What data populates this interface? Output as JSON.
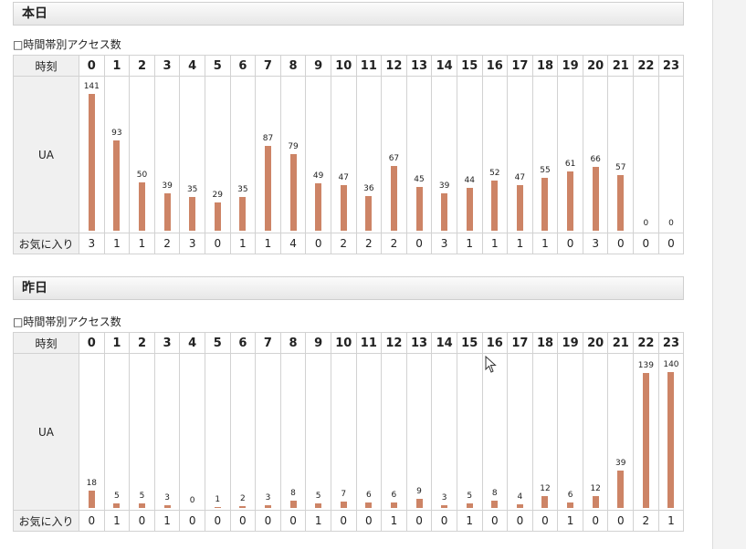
{
  "sections": [
    {
      "header": "本日",
      "subtitle": "□時間帯別アクセス数",
      "row_labels": {
        "hour": "時刻",
        "ua": "UA",
        "favorites": "お気に入り"
      },
      "hours": [
        "0",
        "1",
        "2",
        "3",
        "4",
        "5",
        "6",
        "7",
        "8",
        "9",
        "10",
        "11",
        "12",
        "13",
        "14",
        "15",
        "16",
        "17",
        "18",
        "19",
        "20",
        "21",
        "22",
        "23"
      ],
      "ua": [
        141,
        93,
        50,
        39,
        35,
        29,
        35,
        87,
        79,
        49,
        47,
        36,
        67,
        45,
        39,
        44,
        52,
        47,
        55,
        61,
        66,
        57,
        0,
        0
      ],
      "favorites": [
        3,
        1,
        1,
        2,
        3,
        0,
        1,
        1,
        4,
        0,
        2,
        2,
        2,
        0,
        3,
        1,
        1,
        1,
        1,
        0,
        3,
        0,
        0,
        0
      ]
    },
    {
      "header": "昨日",
      "subtitle": "□時間帯別アクセス数",
      "row_labels": {
        "hour": "時刻",
        "ua": "UA",
        "favorites": "お気に入り"
      },
      "hours": [
        "0",
        "1",
        "2",
        "3",
        "4",
        "5",
        "6",
        "7",
        "8",
        "9",
        "10",
        "11",
        "12",
        "13",
        "14",
        "15",
        "16",
        "17",
        "18",
        "19",
        "20",
        "21",
        "22",
        "23"
      ],
      "ua": [
        18,
        5,
        5,
        3,
        0,
        1,
        2,
        3,
        8,
        5,
        7,
        6,
        6,
        9,
        3,
        5,
        8,
        4,
        12,
        6,
        12,
        39,
        139,
        140
      ],
      "favorites": [
        0,
        1,
        0,
        1,
        0,
        0,
        0,
        0,
        0,
        1,
        0,
        0,
        1,
        0,
        0,
        1,
        0,
        0,
        0,
        1,
        0,
        0,
        2,
        1
      ]
    }
  ],
  "colors": {
    "bar": "#cd8466",
    "header_bg": "#ececec"
  }
}
